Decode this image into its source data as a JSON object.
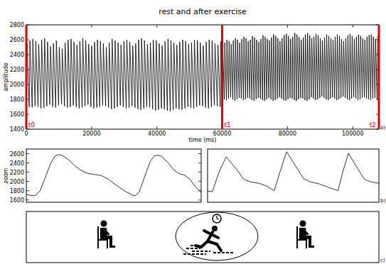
{
  "title": "rest and after exercise",
  "chart_data": [
    {
      "type": "line",
      "color": "#000000",
      "x_label": "time (ms)",
      "y_label": "amplitude",
      "panel_label": "a)",
      "xlim": [
        0,
        108000
      ],
      "ylim": [
        1400,
        2800
      ],
      "xticks": [
        0,
        20000,
        40000,
        60000,
        80000,
        100000
      ],
      "yticks": [
        1400,
        1600,
        1800,
        2000,
        2200,
        2400,
        2600,
        2800
      ],
      "annotations": [
        {
          "x": 0,
          "label": "t0",
          "color": "#e00000"
        },
        {
          "x": 60000,
          "label": "t1",
          "color": "#e00000"
        },
        {
          "x": 108000,
          "label": "t2",
          "color": "#e00000"
        }
      ],
      "x": [
        0,
        200,
        900,
        1100,
        1800,
        2000,
        2700,
        2900,
        3600,
        3800,
        4500,
        4700,
        5400,
        5600,
        6300,
        6500,
        7200,
        7400,
        8100,
        8300,
        9000,
        9200,
        9900,
        10100,
        10800,
        11000,
        11700,
        11900,
        12600,
        12800,
        13500,
        13700,
        14400,
        14600,
        15300,
        15500,
        16200,
        16400,
        17100,
        17300,
        18000,
        18200,
        18900,
        19100,
        19800,
        20000,
        20700,
        20900,
        21600,
        21800,
        22500,
        22700,
        23400,
        23600,
        24300,
        24500,
        25200,
        25400,
        26100,
        26300,
        27000,
        27200,
        27900,
        28100,
        28800,
        29000,
        29700,
        29900,
        30600,
        30800,
        31500,
        31700,
        32400,
        32600,
        33300,
        33500,
        34200,
        34400,
        35100,
        35300,
        36000,
        36200,
        36900,
        37100,
        37800,
        38000,
        38700,
        38900,
        39600,
        39800,
        40500,
        40700,
        41400,
        41600,
        42300,
        42500,
        43200,
        43400,
        44100,
        44300,
        45000,
        45200,
        45900,
        46100,
        46800,
        47000,
        47700,
        47900,
        48600,
        48800,
        49500,
        49700,
        50400,
        50600,
        51300,
        51500,
        52200,
        52400,
        53100,
        53300,
        54000,
        54200,
        54900,
        55100,
        55800,
        56000,
        56700,
        56900,
        57600,
        57800,
        58500,
        58700,
        59400,
        59600,
        60000,
        60150,
        60650,
        60800,
        61300,
        61450,
        61950,
        62100,
        62600,
        62750,
        63250,
        63400,
        63900,
        64050,
        64550,
        64700,
        65200,
        65350,
        65850,
        66000,
        66500,
        66650,
        67150,
        67300,
        67800,
        67950,
        68450,
        68600,
        69100,
        69250,
        69750,
        69900,
        70400,
        70550,
        71050,
        71200,
        71700,
        71850,
        72350,
        72500,
        73000,
        73150,
        73650,
        73800,
        74300,
        74450,
        74950,
        75100,
        75600,
        75750,
        76250,
        76400,
        76900,
        77050,
        77550,
        77700,
        78200,
        78350,
        78850,
        79000,
        79500,
        79650,
        80150,
        80300,
        80800,
        80950,
        81450,
        81600,
        82100,
        82250,
        82750,
        82900,
        83400,
        83550,
        84050,
        84200,
        84700,
        84850,
        85350,
        85500,
        86000,
        86150,
        86650,
        86800,
        87300,
        87450,
        87950,
        88100,
        88600,
        88750,
        89250,
        89400,
        89900,
        90050,
        90550,
        90700,
        91200,
        91350,
        91850,
        92000,
        92500,
        92650,
        93150,
        93300,
        93800,
        93950,
        94450,
        94600,
        95100,
        95250,
        95750,
        95900,
        96400,
        96550,
        97050,
        97200,
        97700,
        97850,
        98350,
        98500,
        99000,
        99150,
        99650,
        99800,
        100300,
        100450,
        100950,
        101100,
        101600,
        101750,
        102250,
        102400,
        102900,
        103050,
        103550,
        103700,
        104200,
        104350,
        104850,
        105000,
        105500,
        105650,
        106150,
        106300,
        106800,
        106950,
        107450,
        107600
      ],
      "values": [
        1720,
        2560,
        1700,
        2590,
        1690,
        2610,
        1710,
        2580,
        1700,
        2540,
        1680,
        2600,
        1690,
        2620,
        1710,
        2570,
        1730,
        2510,
        1700,
        2550,
        1690,
        2590,
        1720,
        2500,
        1740,
        2480,
        1710,
        2560,
        1690,
        2600,
        1700,
        2610,
        1720,
        2570,
        1700,
        2530,
        1680,
        2580,
        1690,
        2620,
        1710,
        2590,
        1730,
        2540,
        1700,
        2520,
        1680,
        2570,
        1690,
        2600,
        1700,
        2580,
        1720,
        2550,
        1710,
        2500,
        1690,
        2560,
        1670,
        2610,
        1680,
        2590,
        1700,
        2560,
        1720,
        2530,
        1700,
        2580,
        1680,
        2600,
        1690,
        2570,
        1710,
        2520,
        1690,
        2550,
        1670,
        2600,
        1660,
        2620,
        1680,
        2590,
        1700,
        2540,
        1690,
        2560,
        1670,
        2600,
        1650,
        2590,
        1660,
        2550,
        1680,
        2520,
        1670,
        2580,
        1650,
        2610,
        1640,
        2590,
        1660,
        2560,
        1680,
        2530,
        1670,
        2570,
        1660,
        2600,
        1680,
        2580,
        1700,
        2540,
        1690,
        2560,
        1680,
        2600,
        1700,
        2590,
        1720,
        2560,
        1710,
        2520,
        1690,
        2570,
        1680,
        2600,
        1700,
        2590,
        1720,
        2550,
        1710,
        2530,
        1700,
        2580,
        1840,
        2520,
        1800,
        2560,
        1790,
        2600,
        1810,
        2580,
        1830,
        2540,
        1800,
        2590,
        1780,
        2620,
        1800,
        2600,
        1820,
        2560,
        1810,
        2610,
        1790,
        2640,
        1800,
        2620,
        1820,
        2580,
        1810,
        2600,
        1790,
        2650,
        1780,
        2630,
        1800,
        2600,
        1820,
        2570,
        1810,
        2610,
        1790,
        2660,
        1780,
        2640,
        1800,
        2610,
        1820,
        2590,
        1800,
        2630,
        1780,
        2670,
        1790,
        2650,
        1810,
        2620,
        1830,
        2580,
        1810,
        2620,
        1790,
        2660,
        1780,
        2680,
        1800,
        2650,
        1820,
        2610,
        1810,
        2640,
        1790,
        2690,
        1780,
        2670,
        1800,
        2640,
        1820,
        2600,
        1810,
        2630,
        1790,
        2670,
        1780,
        2690,
        1800,
        2660,
        1830,
        2620,
        1810,
        2640,
        1790,
        2680,
        1800,
        2660,
        1820,
        2620,
        1840,
        2590,
        1820,
        2630,
        1800,
        2670,
        1790,
        2650,
        1810,
        2620,
        1830,
        2600,
        1810,
        2640,
        1790,
        2670,
        1800,
        2650,
        1820,
        2610,
        1840,
        2580,
        1820,
        2620,
        1800,
        2660,
        1790,
        2680,
        1810,
        2650,
        1830,
        2610,
        1810,
        2640,
        1790,
        2670,
        1800,
        2650,
        1820,
        2620,
        1830,
        2600,
        1810,
        2640,
        1800,
        2660,
        1790,
        2670,
        1810,
        2640,
        1820,
        2610,
        1800,
        2650
      ]
    },
    {
      "type": "line",
      "color": "#000000",
      "y_label": "zoom",
      "tick_labels": "y",
      "xlim": [
        0,
        1640
      ],
      "ylim": [
        1550,
        2700
      ],
      "yticks": [
        1600,
        1800,
        2000,
        2200,
        2400,
        2600
      ],
      "x": [
        0,
        40,
        80,
        130,
        180,
        230,
        270,
        300,
        340,
        400,
        460,
        520,
        580,
        640,
        700,
        760,
        820,
        880,
        940,
        1000,
        1020,
        1060,
        1110,
        1160,
        1200,
        1230,
        1270,
        1330,
        1380,
        1430,
        1480,
        1530,
        1580,
        1640
      ],
      "values": [
        1720,
        1700,
        1690,
        1800,
        2100,
        2400,
        2550,
        2580,
        2560,
        2460,
        2330,
        2230,
        2170,
        2150,
        2130,
        2060,
        1960,
        1860,
        1770,
        1700,
        1690,
        1780,
        2100,
        2420,
        2550,
        2570,
        2540,
        2400,
        2260,
        2170,
        2140,
        2060,
        1900,
        1760
      ]
    },
    {
      "type": "line",
      "color": "#000000",
      "tick_labels": false,
      "panel_label": "b)",
      "xlim": [
        0,
        1800
      ],
      "ylim": [
        1550,
        2700
      ],
      "x": [
        0,
        50,
        120,
        195,
        290,
        380,
        450,
        540,
        620,
        700,
        760,
        830,
        920,
        1010,
        1080,
        1170,
        1260,
        1370,
        1420,
        1480,
        1570,
        1650,
        1720,
        1800
      ],
      "values": [
        1790,
        1780,
        2200,
        2530,
        2300,
        2050,
        1990,
        1960,
        1900,
        1800,
        2200,
        2640,
        2350,
        2060,
        1990,
        1950,
        1880,
        1800,
        2200,
        2610,
        2300,
        2040,
        1990,
        1960
      ]
    }
  ],
  "panel_c": {
    "label": "c)"
  }
}
